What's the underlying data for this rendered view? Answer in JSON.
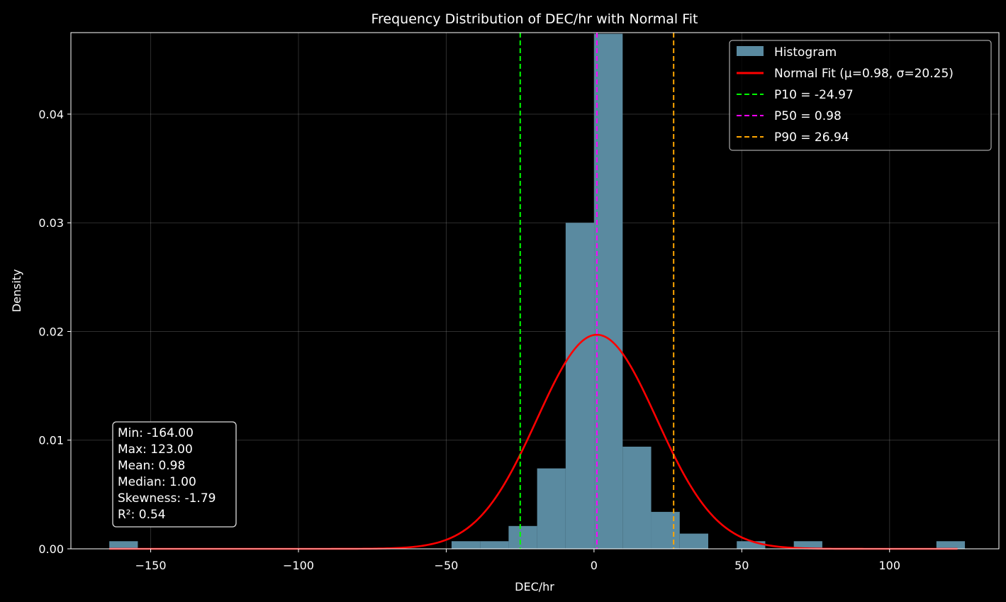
{
  "chart_data": {
    "type": "bar",
    "title": "Frequency Distribution of DEC/hr with Normal Fit",
    "xlabel": "DEC/hr",
    "ylabel": "Density",
    "xlim": [
      -177,
      137
    ],
    "ylim": [
      0,
      0.0475
    ],
    "xticks": [
      -150,
      -100,
      -50,
      0,
      50,
      100
    ],
    "xtick_labels": [
      "−150",
      "−100",
      "−50",
      "0",
      "50",
      "100"
    ],
    "yticks": [
      0,
      0.01,
      0.02,
      0.03,
      0.04
    ],
    "ytick_labels": [
      "0.00",
      "0.01",
      "0.02",
      "0.03",
      "0.04"
    ],
    "grid": true,
    "legend_position": "top-right",
    "histogram": {
      "name": "Histogram",
      "color": "#5a8aa0",
      "bin_edges": [
        -164.0,
        -154.35,
        -144.7,
        -135.05,
        -125.4,
        -115.75,
        -106.1,
        -96.45,
        -86.8,
        -77.15,
        -67.5,
        -57.85,
        -48.2,
        -38.55,
        -28.9,
        -19.25,
        -9.6,
        0.05,
        9.7,
        19.35,
        29.0,
        38.65,
        48.3,
        57.95,
        67.6,
        77.25,
        86.9,
        96.55,
        106.2,
        115.85,
        125.5
      ],
      "densities": [
        0.0007,
        0,
        0,
        0,
        0,
        0,
        0,
        0,
        0,
        0,
        0,
        0,
        0.0007,
        0.0007,
        0.0021,
        0.0074,
        0.03,
        0.0474,
        0.0094,
        0.0034,
        0.0014,
        0,
        0.0007,
        0,
        0.0007,
        0,
        0,
        0,
        0,
        0.0007
      ]
    },
    "normal_fit": {
      "name": "Normal Fit (μ=0.98, σ=20.25)",
      "mu": 0.98,
      "sigma": 20.25,
      "x_range": [
        -164,
        123
      ],
      "color": "#ff0000"
    },
    "percentile_lines": [
      {
        "name": "P10 = -24.97",
        "x": -24.97,
        "color": "#00ff00"
      },
      {
        "name": "P50 = 0.98",
        "x": 0.98,
        "color": "#ff00ff"
      },
      {
        "name": "P90 = 26.94",
        "x": 26.94,
        "color": "#ffa500"
      }
    ],
    "stats_box": [
      "Min: -164.00",
      "Max: 123.00",
      "Mean: 0.98",
      "Median: 1.00",
      "Skewness: -1.79",
      "R²: 0.54"
    ]
  }
}
